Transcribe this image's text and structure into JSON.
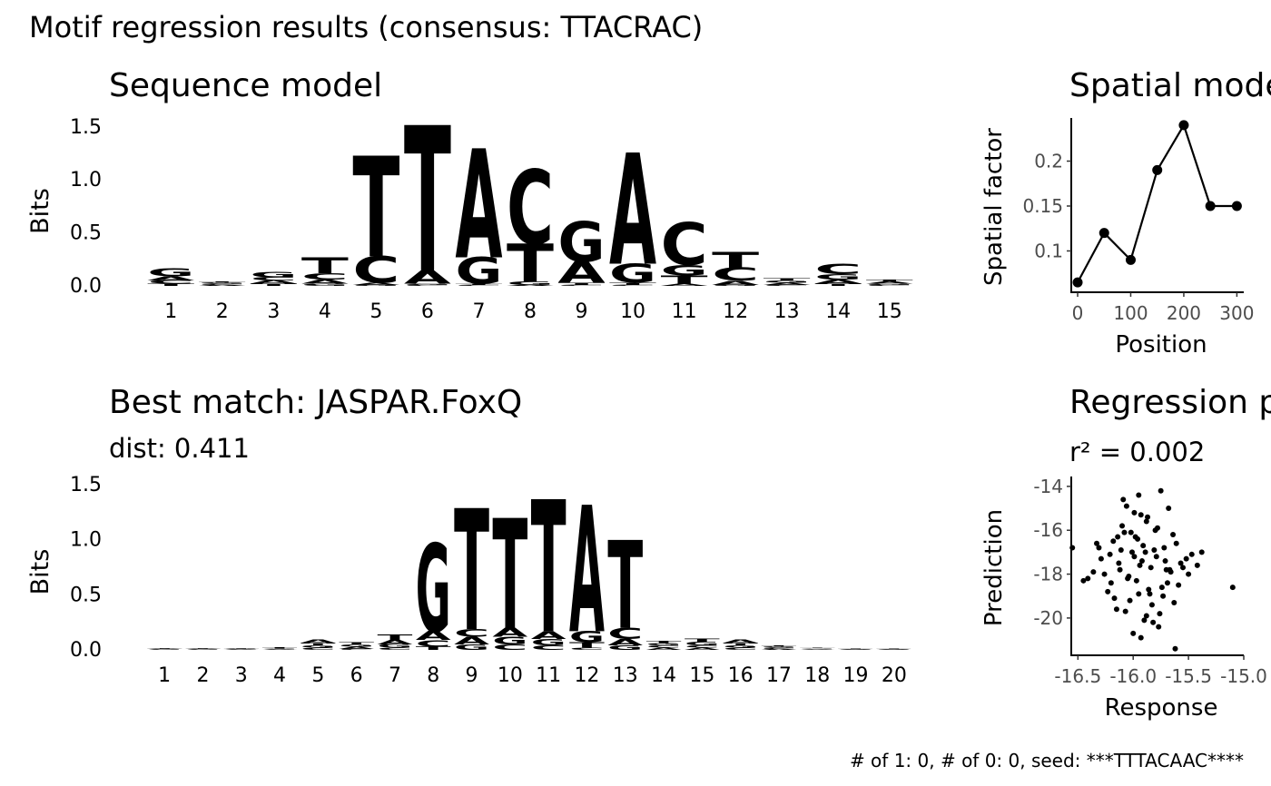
{
  "title": "Motif regression results (consensus: TTACRAC)",
  "caption": "# of 1: 0, # of 0: 0, seed: ***TTTACAAC****",
  "chart_data": [
    {
      "type": "logo",
      "title": "Sequence model",
      "ylabel": "Bits",
      "categories": [
        1,
        2,
        3,
        4,
        5,
        6,
        7,
        8,
        9,
        10,
        11,
        12,
        13,
        14,
        15
      ],
      "ylim": [
        0,
        1.55
      ],
      "yticks": [
        {
          "value": 0,
          "label": "0.0"
        },
        0.5,
        {
          "value": 1,
          "label": "1.0"
        },
        1.5
      ],
      "series": [
        {
          "name": "A",
          "color": "#109648",
          "values": [
            0.04,
            0.01,
            0.03,
            0.04,
            0.02,
            0.12,
            1.03,
            0.01,
            0.2,
            1.05,
            0.02,
            0.04,
            0.02,
            0.04,
            0.02
          ]
        },
        {
          "name": "C",
          "color": "#255C99",
          "values": [
            0.03,
            0.01,
            0.03,
            0.06,
            0.25,
            0.01,
            0.01,
            0.7,
            0.01,
            0.01,
            0.4,
            0.12,
            0.01,
            0.1,
            0.01
          ]
        },
        {
          "name": "G",
          "color": "#F7B32B",
          "values": [
            0.08,
            0.01,
            0.05,
            0.02,
            0.01,
            0.01,
            0.25,
            0.03,
            0.38,
            0.18,
            0.1,
            0.01,
            0.02,
            0.05,
            0.01
          ]
        },
        {
          "name": "T",
          "color": "#D62839",
          "values": [
            0.02,
            0.01,
            0.02,
            0.15,
            0.95,
            1.38,
            0.01,
            0.36,
            0.02,
            0.02,
            0.08,
            0.15,
            0.02,
            0.02,
            0.02
          ]
        }
      ]
    },
    {
      "type": "line",
      "title": "Spatial model",
      "xlabel": "Position",
      "ylabel": "Spatial factor",
      "x": [
        0,
        50,
        100,
        150,
        200,
        250,
        300
      ],
      "values": [
        0.065,
        0.12,
        0.09,
        0.19,
        0.24,
        0.15,
        0.15
      ],
      "color": "#000000",
      "xlim": [
        -12,
        313
      ],
      "ylim": [
        0.054,
        0.248
      ],
      "xticks": [
        0,
        100,
        200,
        300
      ],
      "yticks": [
        0.1,
        0.15,
        0.2
      ]
    },
    {
      "type": "logo",
      "title": "Best match: JASPAR.FoxQ",
      "subtitle": "dist: 0.411",
      "ylabel": "Bits",
      "categories": [
        1,
        2,
        3,
        4,
        5,
        6,
        7,
        8,
        9,
        10,
        11,
        12,
        13,
        14,
        15,
        16,
        17,
        18,
        19,
        20
      ],
      "ylim": [
        0,
        1.55
      ],
      "yticks": [
        {
          "value": 0,
          "label": "0.0"
        },
        0.5,
        {
          "value": 1,
          "label": "1.0"
        },
        1.5
      ],
      "series": [
        {
          "name": "A",
          "color": "#109648",
          "values": [
            0.005,
            0.005,
            0.004,
            0.005,
            0.03,
            0.02,
            0.04,
            0.08,
            0.07,
            0.08,
            0.07,
            1.15,
            0.06,
            0.02,
            0.02,
            0.03,
            0.01,
            0.005,
            0.003,
            0.003
          ]
        },
        {
          "name": "C",
          "color": "#255C99",
          "values": [
            0.004,
            0.004,
            0.004,
            0.004,
            0.02,
            0.01,
            0.02,
            0.06,
            0.07,
            0.05,
            0.04,
            0.02,
            0.1,
            0.02,
            0.02,
            0.02,
            0.01,
            0.005,
            0.003,
            0.003
          ]
        },
        {
          "name": "G",
          "color": "#F7B32B",
          "values": [
            0.004,
            0.004,
            0.004,
            0.005,
            0.02,
            0.02,
            0.03,
            0.8,
            0.05,
            0.07,
            0.06,
            0.1,
            0.04,
            0.02,
            0.03,
            0.02,
            0.01,
            0.005,
            0.003,
            0.003
          ]
        },
        {
          "name": "T",
          "color": "#D62839",
          "values": [
            0.006,
            0.005,
            0.005,
            0.008,
            0.02,
            0.02,
            0.05,
            0.03,
            1.1,
            1.0,
            1.2,
            0.05,
            0.8,
            0.02,
            0.03,
            0.02,
            0.01,
            0.006,
            0.003,
            0.003
          ]
        }
      ]
    },
    {
      "type": "scatter",
      "title": "Regression performance",
      "subtitle": "r² = 0.002",
      "xlabel": "Response",
      "ylabel": "Prediction",
      "color": "#000000",
      "xlim": [
        -16.56,
        -15.0
      ],
      "ylim": [
        -21.7,
        -13.55
      ],
      "xticks": [
        -16.5,
        {
          "value": -16,
          "label": "-16.0"
        },
        -15.5,
        {
          "value": -15,
          "label": "-15.0"
        }
      ],
      "yticks": [
        -14,
        -16,
        -18,
        -20
      ],
      "x": [
        -15.92,
        -16.05,
        -15.81,
        -16.12,
        -15.74,
        -15.98,
        -16.21,
        -15.66,
        -15.88,
        -16.03,
        -15.57,
        -16.31,
        -15.95,
        -15.79,
        -16.08,
        -15.69,
        -16.15,
        -15.84,
        -15.99,
        -16.26,
        -15.61,
        -15.9,
        -16.01,
        -15.73,
        -16.18,
        -15.86,
        -15.52,
        -16.1,
        -15.94,
        -15.77,
        -16.36,
        -15.64,
        -15.97,
        -16.06,
        -15.83,
        -15.47,
        -16.23,
        -15.91,
        -15.7,
        -16.0,
        -15.8,
        -16.13,
        -15.59,
        -15.87,
        -16.29,
        -15.76,
        -15.96,
        -16.04,
        -15.68,
        -15.42,
        -16.17,
        -15.89,
        -16.41,
        -15.72,
        -15.93,
        -16.09,
        -15.55,
        -15.85,
        -16.02,
        -15.78,
        -16.2,
        -15.63,
        -15.99,
        -16.33,
        -15.82,
        -15.5,
        -16.11,
        -15.95,
        -15.71,
        -16.07,
        -16.55,
        -15.1,
        -15.62,
        -15.75,
        -15.38,
        -16.45,
        -15.88,
        -16.14,
        -15.67,
        -15.93
      ],
      "values": [
        -17.4,
        -18.2,
        -16.9,
        -17.8,
        -18.6,
        -16.3,
        -17.1,
        -17.9,
        -15.6,
        -19.2,
        -17.5,
        -16.8,
        -18.9,
        -17.2,
        -16.1,
        -18.4,
        -19.6,
        -17.7,
        -15.2,
        -18.0,
        -16.6,
        -20.1,
        -17.0,
        -19.0,
        -16.5,
        -18.7,
        -17.3,
        -15.8,
        -17.6,
        -20.4,
        -17.9,
        -16.2,
        -18.3,
        -14.9,
        -19.4,
        -17.1,
        -18.8,
        -16.7,
        -17.8,
        -20.7,
        -16.0,
        -17.5,
        -18.5,
        -15.4,
        -17.3,
        -19.8,
        -16.4,
        -18.1,
        -15.0,
        -17.6,
        -19.1,
        -17.0,
        -18.2,
        -16.8,
        -20.9,
        -14.6,
        -17.7,
        -18.9,
        -16.1,
        -15.9,
        -18.4,
        -19.3,
        -17.2,
        -16.6,
        -20.2,
        -18.0,
        -16.9,
        -14.4,
        -17.4,
        -19.7,
        -16.8,
        -18.6,
        -21.4,
        -14.2,
        -17.0,
        -18.3,
        -19.9,
        -16.3,
        -17.8,
        -15.3
      ]
    }
  ]
}
